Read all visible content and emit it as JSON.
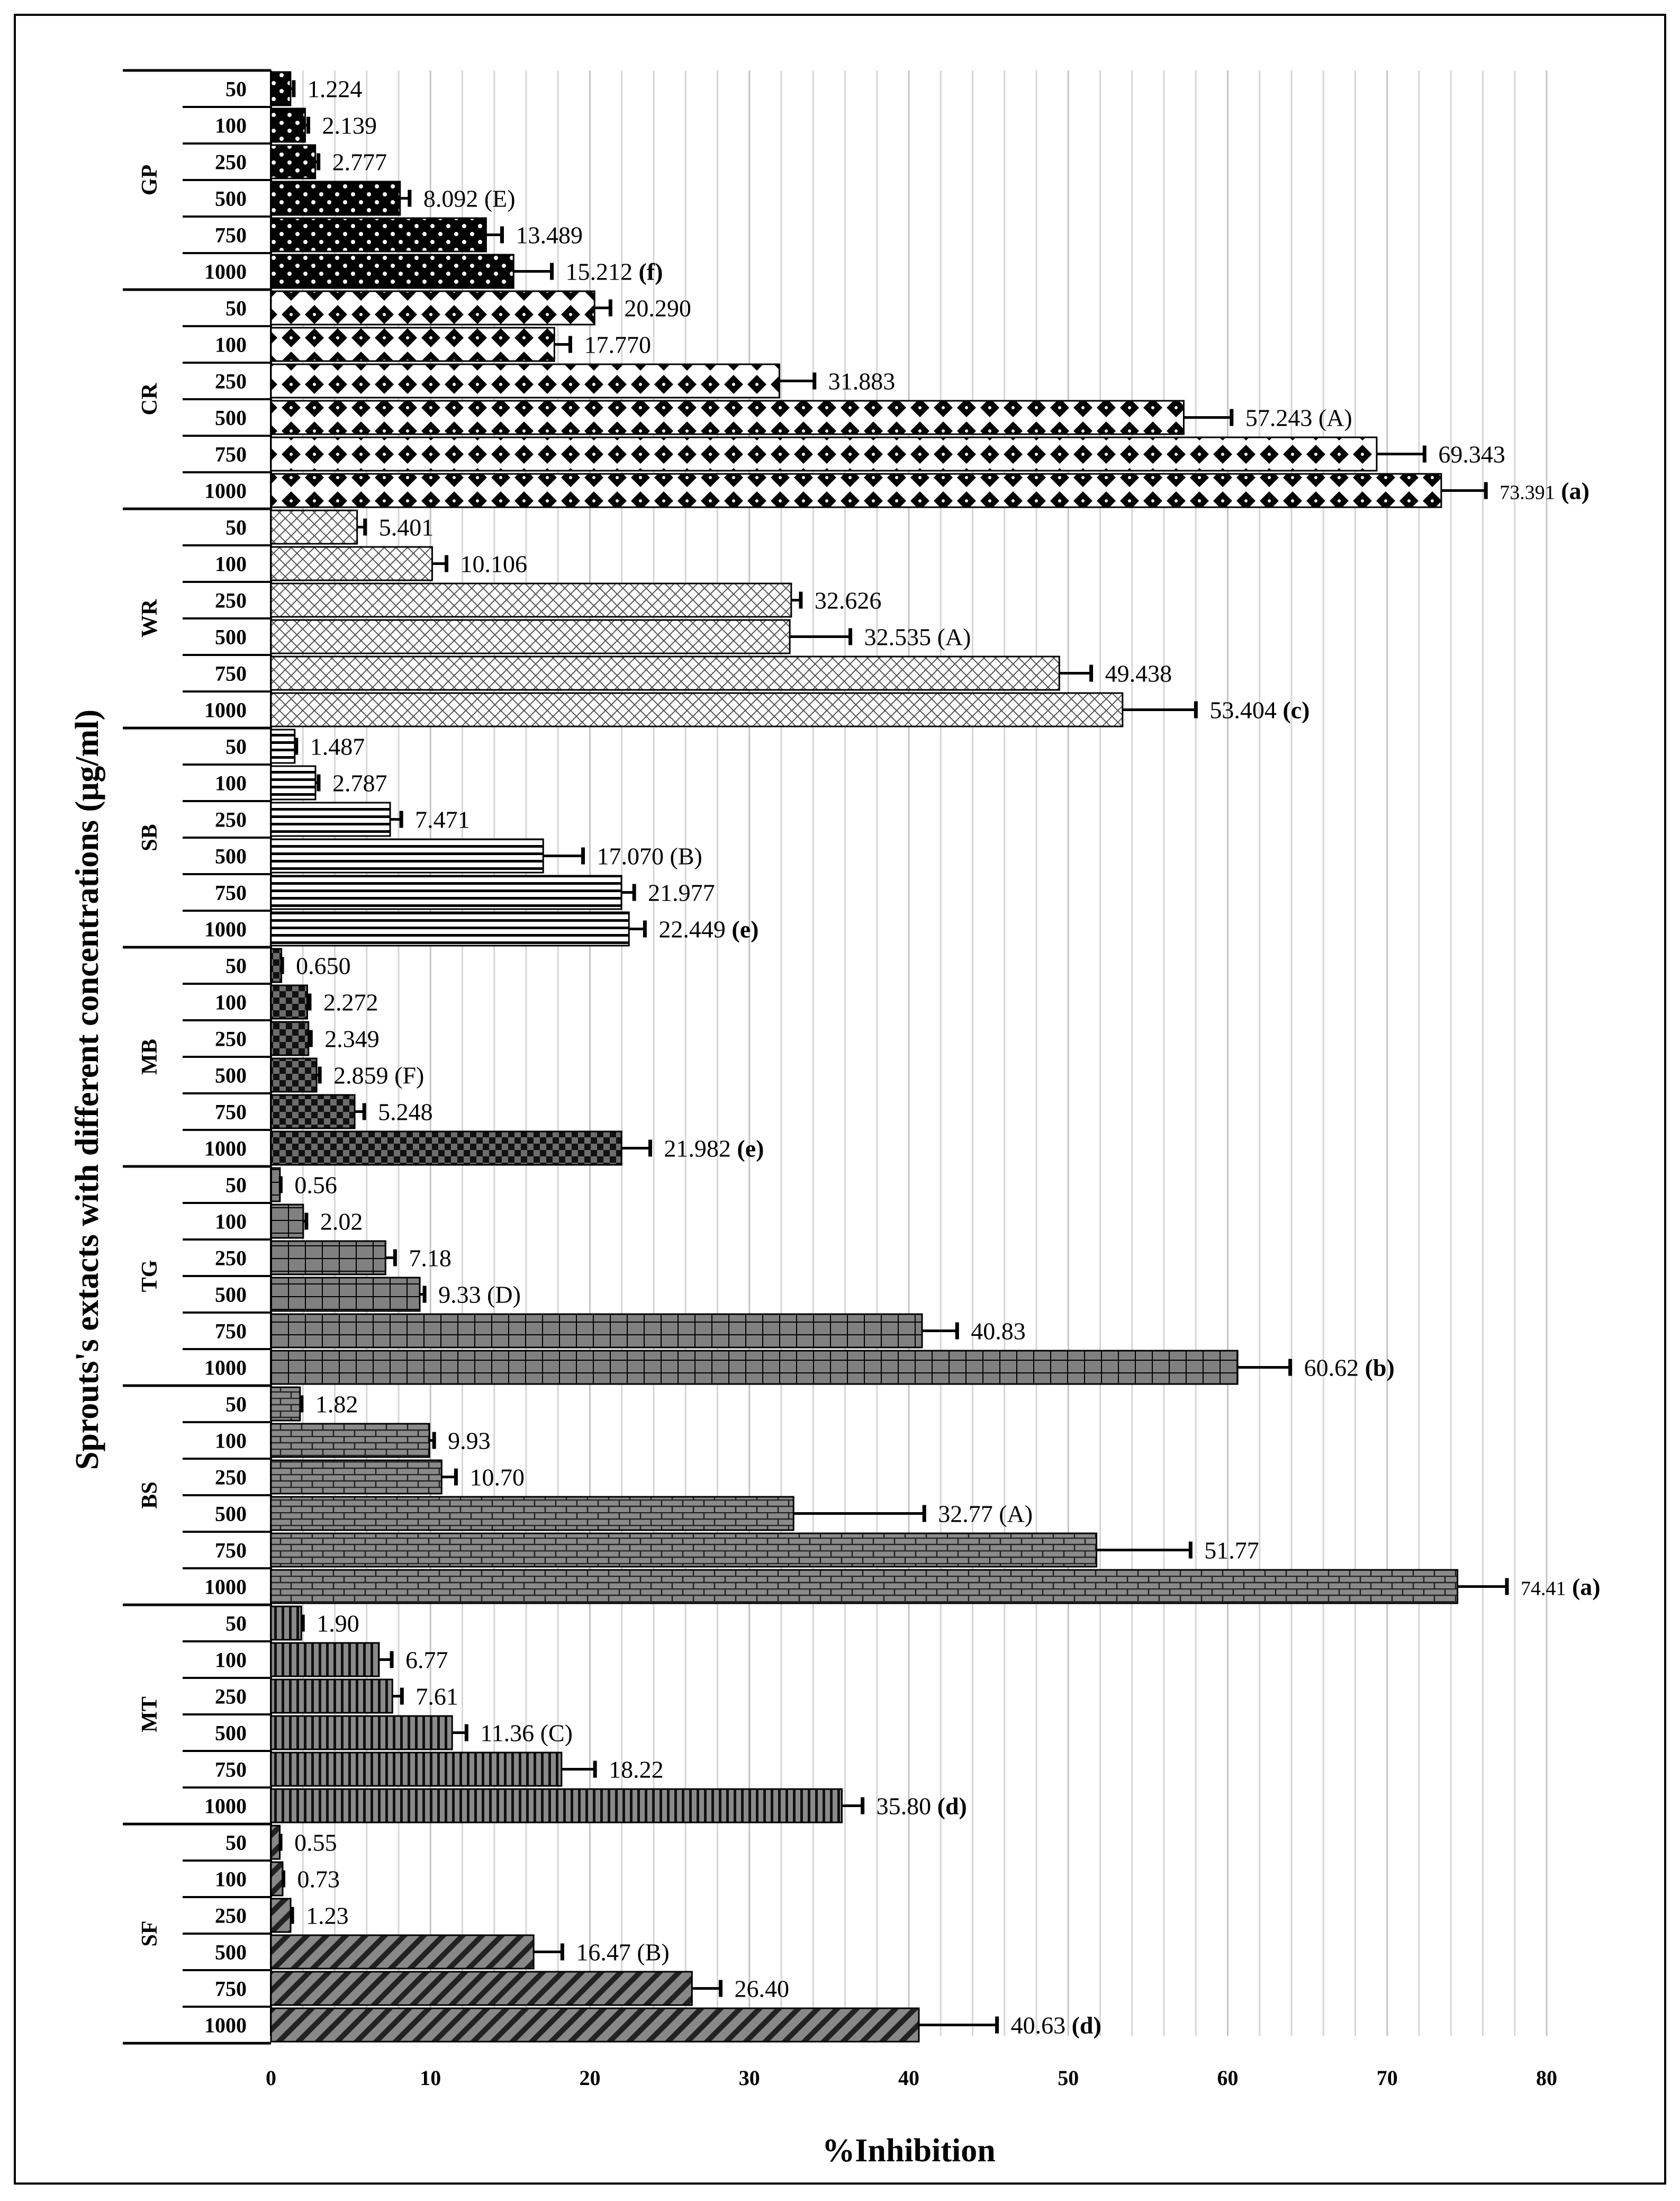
{
  "chart_data": {
    "type": "bar",
    "orientation": "horizontal",
    "title": "",
    "xlabel": "%Inhibition",
    "ylabel": "Sprouts's extacts with different concentrations (μg/ml)",
    "xlim": [
      0,
      80
    ],
    "xticks": [
      "0",
      "10",
      "20",
      "30",
      "40",
      "50",
      "60",
      "70",
      "80"
    ],
    "grid": "vertical",
    "groups": [
      {
        "name": "GP",
        "pattern": "dots",
        "bars": [
          {
            "conc": "50",
            "value": 1.224,
            "err": 0.2,
            "label": "1.224",
            "note": ""
          },
          {
            "conc": "100",
            "value": 2.139,
            "err": 0.2,
            "label": "2.139",
            "note": ""
          },
          {
            "conc": "250",
            "value": 2.777,
            "err": 0.2,
            "label": "2.777",
            "note": ""
          },
          {
            "conc": "500",
            "value": 8.092,
            "err": 0.6,
            "label": "8.092",
            "note": "(E)"
          },
          {
            "conc": "750",
            "value": 13.489,
            "err": 1.0,
            "label": "13.489",
            "note": ""
          },
          {
            "conc": "1000",
            "value": 15.212,
            "err": 2.4,
            "label": "15.212",
            "note": "(f)"
          }
        ]
      },
      {
        "name": "CR",
        "pattern": "diamonds",
        "bars": [
          {
            "conc": "50",
            "value": 20.29,
            "err": 1.0,
            "label": "20.290",
            "note": ""
          },
          {
            "conc": "100",
            "value": 17.77,
            "err": 1.0,
            "label": "17.770",
            "note": ""
          },
          {
            "conc": "250",
            "value": 31.883,
            "err": 2.2,
            "label": "31.883",
            "note": ""
          },
          {
            "conc": "500",
            "value": 57.243,
            "err": 3.0,
            "label": "57.243",
            "note": "(A)"
          },
          {
            "conc": "750",
            "value": 69.343,
            "err": 3.0,
            "label": "69.343",
            "note": ""
          },
          {
            "conc": "1000",
            "value": 73.391,
            "err": 2.8,
            "label": "73.391",
            "note": "(a)"
          }
        ]
      },
      {
        "name": "WR",
        "pattern": "crosshatch",
        "bars": [
          {
            "conc": "50",
            "value": 5.401,
            "err": 0.5,
            "label": "5.401",
            "note": ""
          },
          {
            "conc": "100",
            "value": 10.106,
            "err": 0.9,
            "label": "10.106",
            "note": ""
          },
          {
            "conc": "250",
            "value": 32.626,
            "err": 0.6,
            "label": "32.626",
            "note": ""
          },
          {
            "conc": "500",
            "value": 32.535,
            "err": 3.8,
            "label": "32.535",
            "note": "(A)"
          },
          {
            "conc": "750",
            "value": 49.438,
            "err": 2.0,
            "label": "49.438",
            "note": ""
          },
          {
            "conc": "1000",
            "value": 53.404,
            "err": 4.6,
            "label": "53.404",
            "note": "(c)"
          }
        ]
      },
      {
        "name": "SB",
        "pattern": "horizontal-lines",
        "bars": [
          {
            "conc": "50",
            "value": 1.487,
            "err": 0.1,
            "label": "1.487",
            "note": ""
          },
          {
            "conc": "100",
            "value": 2.787,
            "err": 0.2,
            "label": "2.787",
            "note": ""
          },
          {
            "conc": "250",
            "value": 7.471,
            "err": 0.7,
            "label": "7.471",
            "note": ""
          },
          {
            "conc": "500",
            "value": 17.07,
            "err": 2.5,
            "label": "17.070",
            "note": "(B)"
          },
          {
            "conc": "750",
            "value": 21.977,
            "err": 0.8,
            "label": "21.977",
            "note": ""
          },
          {
            "conc": "1000",
            "value": 22.449,
            "err": 1.0,
            "label": "22.449",
            "note": "(e)"
          }
        ]
      },
      {
        "name": "MB",
        "pattern": "checker",
        "bars": [
          {
            "conc": "50",
            "value": 0.65,
            "err": 0.05,
            "label": "0.650",
            "note": ""
          },
          {
            "conc": "100",
            "value": 2.272,
            "err": 0.15,
            "label": "2.272",
            "note": ""
          },
          {
            "conc": "250",
            "value": 2.349,
            "err": 0.15,
            "label": "2.349",
            "note": ""
          },
          {
            "conc": "500",
            "value": 2.859,
            "err": 0.2,
            "label": "2.859",
            "note": "(F)"
          },
          {
            "conc": "750",
            "value": 5.248,
            "err": 0.6,
            "label": "5.248",
            "note": ""
          },
          {
            "conc": "1000",
            "value": 21.982,
            "err": 1.8,
            "label": "21.982",
            "note": "(e)"
          }
        ]
      },
      {
        "name": "TG",
        "pattern": "grid",
        "bars": [
          {
            "conc": "50",
            "value": 0.56,
            "err": 0.05,
            "label": "0.56",
            "note": ""
          },
          {
            "conc": "100",
            "value": 2.02,
            "err": 0.2,
            "label": "2.02",
            "note": ""
          },
          {
            "conc": "250",
            "value": 7.18,
            "err": 0.6,
            "label": "7.18",
            "note": ""
          },
          {
            "conc": "500",
            "value": 9.33,
            "err": 0.3,
            "label": "9.33",
            "note": "(D)"
          },
          {
            "conc": "750",
            "value": 40.83,
            "err": 2.2,
            "label": "40.83",
            "note": ""
          },
          {
            "conc": "1000",
            "value": 60.62,
            "err": 3.3,
            "label": "60.62",
            "note": "(b)"
          }
        ]
      },
      {
        "name": "BS",
        "pattern": "bricks",
        "bars": [
          {
            "conc": "50",
            "value": 1.82,
            "err": 0.1,
            "label": "1.82",
            "note": ""
          },
          {
            "conc": "100",
            "value": 9.93,
            "err": 0.3,
            "label": "9.93",
            "note": ""
          },
          {
            "conc": "250",
            "value": 10.7,
            "err": 0.9,
            "label": "10.70",
            "note": ""
          },
          {
            "conc": "500",
            "value": 32.77,
            "err": 8.2,
            "label": "32.77",
            "note": "(A)"
          },
          {
            "conc": "750",
            "value": 51.77,
            "err": 5.9,
            "label": "51.77",
            "note": ""
          },
          {
            "conc": "1000",
            "value": 74.41,
            "err": 3.1,
            "label": "74.41",
            "note": "(a)"
          }
        ]
      },
      {
        "name": "MT",
        "pattern": "vertical-lines",
        "bars": [
          {
            "conc": "50",
            "value": 1.9,
            "err": 0.1,
            "label": "1.90",
            "note": ""
          },
          {
            "conc": "100",
            "value": 6.77,
            "err": 0.8,
            "label": "6.77",
            "note": ""
          },
          {
            "conc": "250",
            "value": 7.61,
            "err": 0.6,
            "label": "7.61",
            "note": ""
          },
          {
            "conc": "500",
            "value": 11.36,
            "err": 0.9,
            "label": "11.36",
            "note": "(C)"
          },
          {
            "conc": "750",
            "value": 18.22,
            "err": 2.1,
            "label": "18.22",
            "note": ""
          },
          {
            "conc": "1000",
            "value": 35.8,
            "err": 1.3,
            "label": "35.80",
            "note": "(d)"
          }
        ]
      },
      {
        "name": "SF",
        "pattern": "diagonal",
        "bars": [
          {
            "conc": "50",
            "value": 0.55,
            "err": 0.05,
            "label": "0.55",
            "note": ""
          },
          {
            "conc": "100",
            "value": 0.73,
            "err": 0.05,
            "label": "0.73",
            "note": ""
          },
          {
            "conc": "250",
            "value": 1.23,
            "err": 0.1,
            "label": "1.23",
            "note": ""
          },
          {
            "conc": "500",
            "value": 16.47,
            "err": 1.8,
            "label": "16.47",
            "note": "(B)"
          },
          {
            "conc": "750",
            "value": 26.4,
            "err": 1.8,
            "label": "26.40",
            "note": ""
          },
          {
            "conc": "1000",
            "value": 40.63,
            "err": 4.9,
            "label": "40.63",
            "note": "(d)"
          }
        ]
      }
    ]
  }
}
